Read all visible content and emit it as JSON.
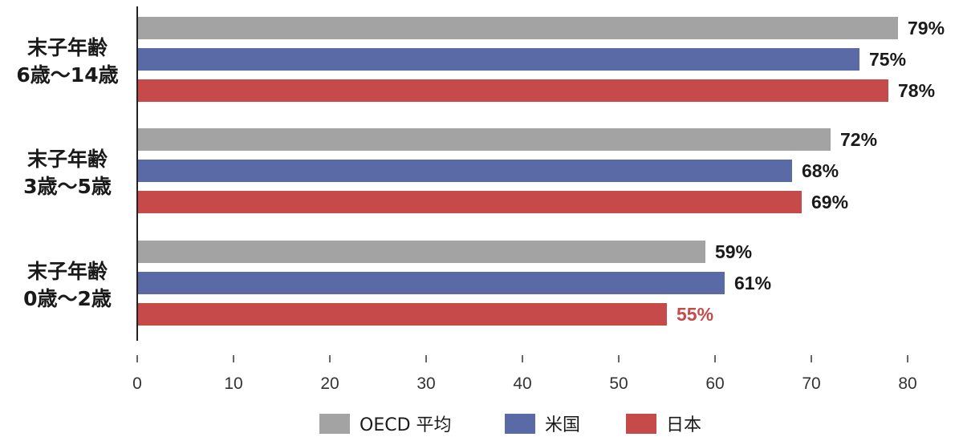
{
  "chart_data": {
    "type": "bar",
    "orientation": "horizontal",
    "categories": [
      {
        "line1": "末子年齢",
        "line2": "6歳〜14歳"
      },
      {
        "line1": "末子年齢",
        "line2": "3歳〜5歳"
      },
      {
        "line1": "末子年齢",
        "line2": "0歳〜2歳"
      }
    ],
    "series": [
      {
        "name": "OECD 平均",
        "color": "#a3a3a3",
        "values": [
          79,
          72,
          59
        ],
        "labels": [
          "79%",
          "72%",
          "59%"
        ]
      },
      {
        "name": "米国",
        "color": "#5a6aa6",
        "values": [
          75,
          68,
          61
        ],
        "labels": [
          "75%",
          "68%",
          "61%"
        ]
      },
      {
        "name": "日本",
        "color": "#c64a4a",
        "values": [
          78,
          69,
          55
        ],
        "labels": [
          "78%",
          "69%",
          "55%"
        ]
      }
    ],
    "label_colors": {
      "default": "#1a1a1a",
      "highlight": "#c64a4a"
    },
    "highlight": {
      "series": 2,
      "category": 2
    },
    "xlim": [
      0,
      80
    ],
    "xticks": [
      "0",
      "10",
      "20",
      "30",
      "40",
      "50",
      "60",
      "70",
      "80"
    ],
    "grid": false,
    "legend_position": "bottom-center"
  }
}
